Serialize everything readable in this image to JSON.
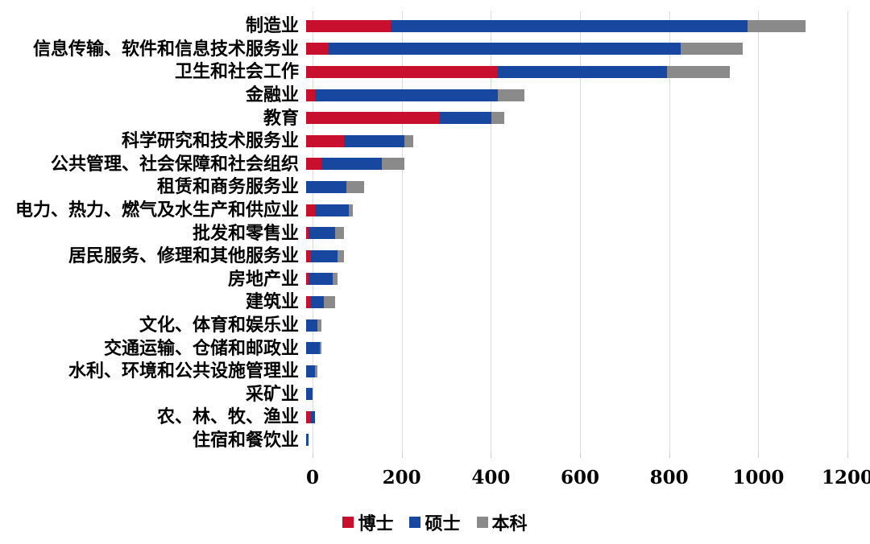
{
  "chart_data": {
    "type": "bar",
    "orientation": "horizontal",
    "stacked": true,
    "title": "",
    "xlabel": "",
    "ylabel": "",
    "xlim": [
      0,
      1200
    ],
    "x_ticks": [
      0,
      200,
      400,
      600,
      800,
      1000,
      1200
    ],
    "grid": "vertical",
    "legend_position": "bottom",
    "colors": {
      "doctor": "#c8102e",
      "master": "#17479e",
      "bachelor": "#8a8a8a",
      "gridline": "#d9d9d9"
    },
    "legend": [
      {
        "name": "博士",
        "color": "#c8102e"
      },
      {
        "name": "硕士",
        "color": "#17479e"
      },
      {
        "name": "本科",
        "color": "#8a8a8a"
      }
    ],
    "categories": [
      "制造业",
      "信息传输、软件和信息技术服务业",
      "卫生和社会工作",
      "金融业",
      "教育",
      "科学研究和技术服务业",
      "公共管理、社会保障和社会组织",
      "租赁和商务服务业",
      "电力、热力、燃气及水生产和供应业",
      "批发和零售业",
      "居民服务、修理和其他服务业",
      "房地产业",
      "建筑业",
      "文化、体育和娱乐业",
      "交通运输、仓储和邮政业",
      "水利、环境和公共设施管理业",
      "采矿业",
      "农、林、牧、渔业",
      "住宿和餐饮业"
    ],
    "series": [
      {
        "name": "博士",
        "color": "#c8102e",
        "values": [
          190,
          50,
          430,
          20,
          300,
          85,
          35,
          0,
          20,
          5,
          10,
          5,
          10,
          0,
          0,
          0,
          0,
          10,
          0
        ]
      },
      {
        "name": "硕士",
        "color": "#17479e",
        "values": [
          800,
          790,
          380,
          410,
          115,
          135,
          135,
          90,
          75,
          60,
          60,
          55,
          30,
          25,
          30,
          20,
          15,
          10,
          5
        ]
      },
      {
        "name": "本科",
        "color": "#8a8a8a",
        "values": [
          130,
          140,
          140,
          60,
          30,
          20,
          50,
          40,
          10,
          20,
          15,
          10,
          25,
          10,
          5,
          5,
          0,
          0,
          0
        ]
      }
    ]
  }
}
